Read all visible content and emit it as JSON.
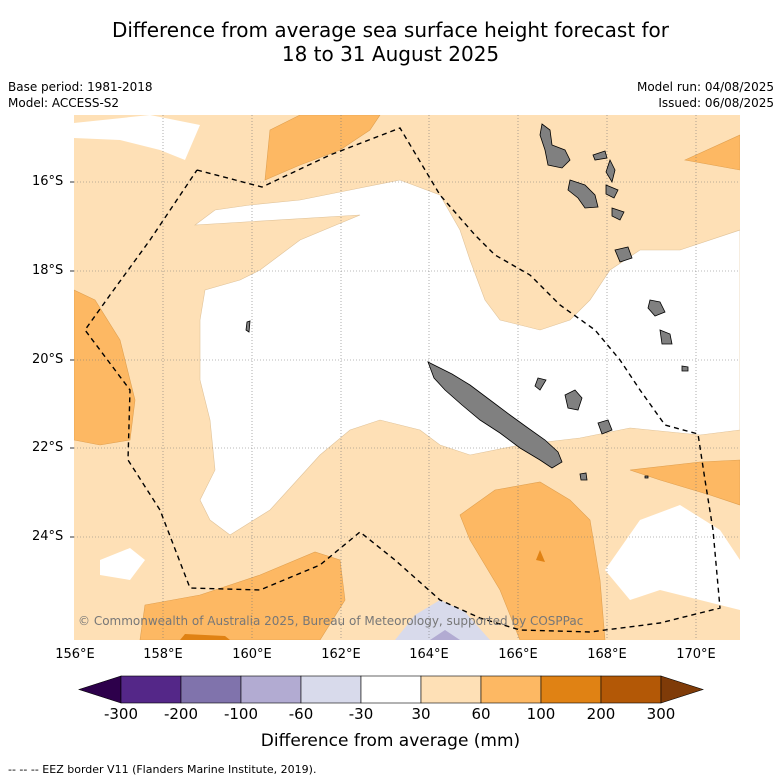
{
  "header": {
    "title_line1": "Difference from average sea surface height forecast for",
    "title_line2": "18 to 31 August 2025",
    "base_period": "Base period: 1981-2018",
    "model": "Model: ACCESS-S2",
    "model_run": "Model run: 04/08/2025",
    "issued": "Issued: 06/08/2025"
  },
  "map": {
    "lat_labels": [
      "16°S",
      "18°S",
      "20°S",
      "22°S",
      "24°S"
    ],
    "lon_labels": [
      "156°E",
      "158°E",
      "160°E",
      "162°E",
      "164°E",
      "166°E",
      "168°E",
      "170°E"
    ],
    "extent": {
      "lon": [
        156,
        171
      ],
      "lat": [
        -26.3,
        -14.8
      ]
    },
    "copyright": "© Commonwealth of Australia 2025, Bureau of Meteorology, supported by COSPPac"
  },
  "colorbar": {
    "title": "Difference from average (mm)",
    "ticks": [
      "-300",
      "-200",
      "-100",
      "-60",
      "-30",
      "30",
      "60",
      "100",
      "200",
      "300"
    ],
    "colors": [
      "#2d004b",
      "#542788",
      "#8073ac",
      "#b2abd2",
      "#d8daeb",
      "#ffffff",
      "#fee0b6",
      "#fdb863",
      "#e08214",
      "#b35806",
      "#7f3b08"
    ]
  },
  "legend": {
    "eez_text": "--  --  -- EEZ border V11 (Flanders Marine Institute, 2019)."
  },
  "colors": {
    "land": "#808080",
    "eez_line": "#000000",
    "grid": "#888888"
  }
}
